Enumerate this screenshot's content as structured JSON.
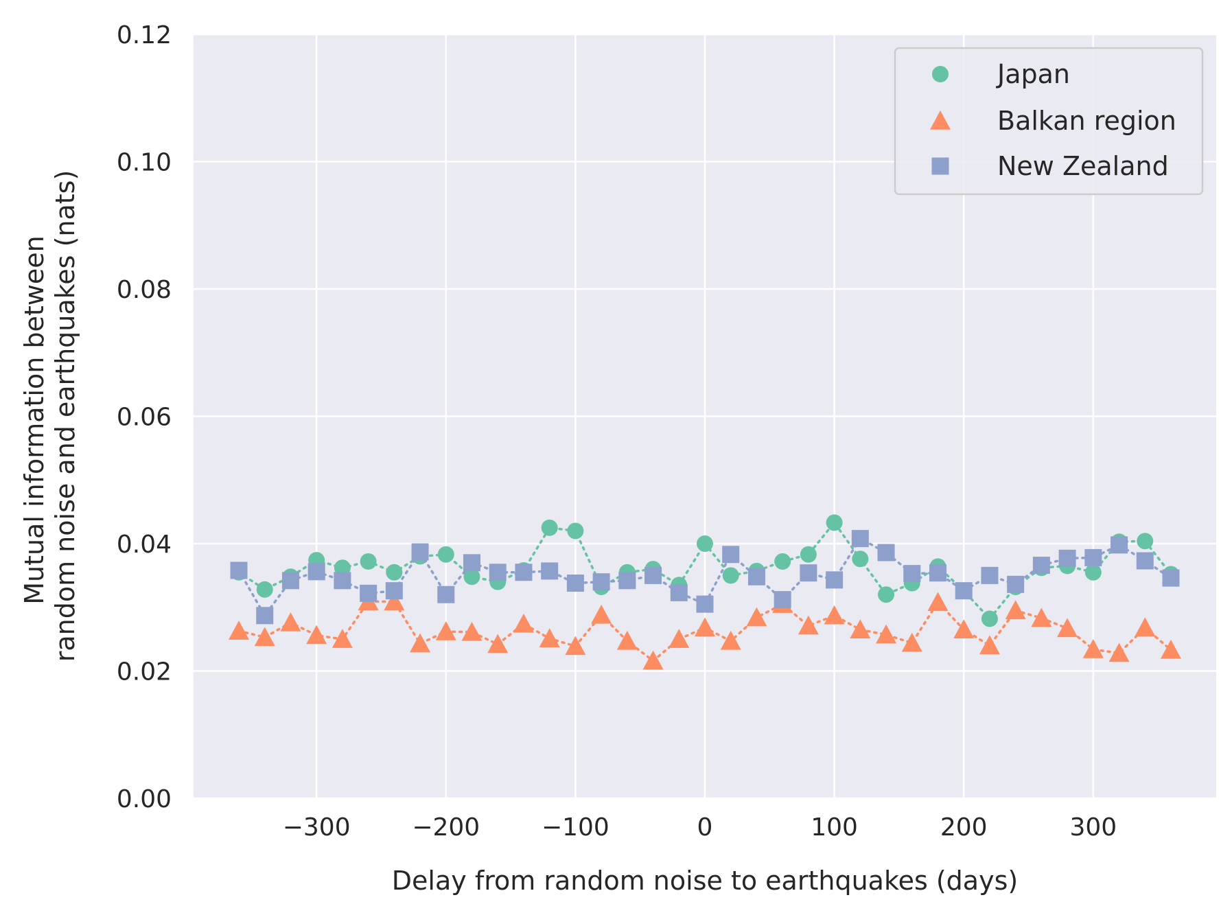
{
  "chart_data": {
    "type": "scatter",
    "xlabel": "Delay from random noise to earthquakes (days)",
    "ylabel_lines": [
      "Mutual information between",
      "random noise and earthquakes (nats)"
    ],
    "xlim": [
      -395,
      395
    ],
    "ylim": [
      0,
      0.12
    ],
    "x_ticks": [
      -300,
      -200,
      -100,
      0,
      100,
      200,
      300
    ],
    "x_tick_labels": [
      "−300",
      "−200",
      "−100",
      "0",
      "100",
      "200",
      "300"
    ],
    "y_ticks": [
      0,
      0.02,
      0.04,
      0.06,
      0.08,
      0.1,
      0.12
    ],
    "y_tick_labels": [
      "0.00",
      "0.02",
      "0.04",
      "0.06",
      "0.08",
      "0.10",
      "0.12"
    ],
    "grid": true,
    "legend_position": "top-right",
    "x": [
      -360,
      -340,
      -320,
      -300,
      -280,
      -260,
      -240,
      -220,
      -200,
      -180,
      -160,
      -140,
      -120,
      -100,
      -80,
      -60,
      -40,
      -20,
      0,
      20,
      40,
      60,
      80,
      100,
      120,
      140,
      160,
      180,
      200,
      220,
      240,
      260,
      280,
      300,
      320,
      340,
      360
    ],
    "series": [
      {
        "name": "Japan",
        "marker": "circle",
        "color": "#66c2a5",
        "values": [
          0.0355,
          0.0328,
          0.0348,
          0.0374,
          0.0362,
          0.0372,
          0.0355,
          0.038,
          0.0383,
          0.0348,
          0.034,
          0.0358,
          0.0425,
          0.042,
          0.0332,
          0.0355,
          0.036,
          0.0335,
          0.04,
          0.035,
          0.0357,
          0.0372,
          0.0383,
          0.0433,
          0.0376,
          0.032,
          0.0338,
          0.0364,
          0.0326,
          0.0282,
          0.0332,
          0.0362,
          0.0365,
          0.0355,
          0.0403,
          0.0404,
          0.0352
        ]
      },
      {
        "name": "Balkan region",
        "marker": "triangle",
        "color": "#fc8d62",
        "values": [
          0.0263,
          0.0253,
          0.0276,
          0.0256,
          0.025,
          0.0309,
          0.0309,
          0.0243,
          0.0262,
          0.0261,
          0.0242,
          0.0274,
          0.0251,
          0.0239,
          0.0288,
          0.0247,
          0.0216,
          0.025,
          0.0268,
          0.0247,
          0.0284,
          0.0305,
          0.0271,
          0.0287,
          0.0265,
          0.0257,
          0.0244,
          0.0308,
          0.0265,
          0.024,
          0.0295,
          0.0283,
          0.0267,
          0.0234,
          0.0228,
          0.0268,
          0.0233
        ]
      },
      {
        "name": "New Zealand",
        "marker": "square",
        "color": "#8da0cb",
        "values": [
          0.0358,
          0.0287,
          0.0342,
          0.0356,
          0.0342,
          0.0322,
          0.0326,
          0.0387,
          0.032,
          0.037,
          0.0355,
          0.0355,
          0.0357,
          0.0338,
          0.034,
          0.0342,
          0.035,
          0.0323,
          0.0305,
          0.0383,
          0.0348,
          0.0312,
          0.0354,
          0.0343,
          0.0408,
          0.0386,
          0.0353,
          0.0354,
          0.0326,
          0.035,
          0.0336,
          0.0366,
          0.0377,
          0.0378,
          0.0398,
          0.0373,
          0.0346
        ]
      }
    ]
  }
}
